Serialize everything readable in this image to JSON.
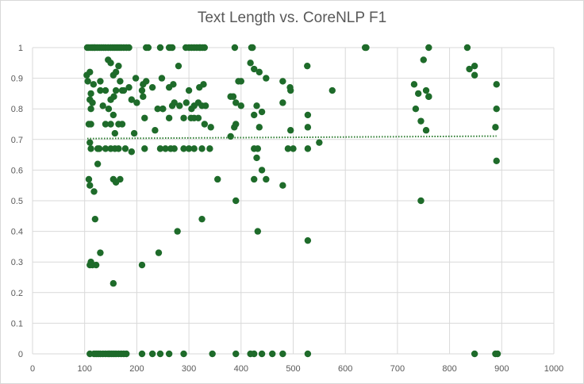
{
  "chart_data": {
    "type": "scatter",
    "title": "Text Length vs. CoreNLP F1",
    "xlabel": "",
    "ylabel": "",
    "xlim": [
      0,
      1000
    ],
    "ylim": [
      0,
      1
    ],
    "x_ticks": [
      "0",
      "100",
      "200",
      "300",
      "400",
      "500",
      "600",
      "700",
      "800",
      "900",
      "1000"
    ],
    "y_ticks": [
      "0",
      "0.1",
      "0.2",
      "0.3",
      "0.4",
      "0.5",
      "0.6",
      "0.7",
      "0.8",
      "0.9",
      "1"
    ],
    "grid": "horizontal and vertical major gridlines",
    "legend": "none",
    "marker_color": "#1e6b2a",
    "trendline": {
      "type": "linear",
      "style": "dotted",
      "color": "#2e7d32",
      "x": [
        105,
        890
      ],
      "y": [
        0.703,
        0.711
      ]
    },
    "series": [
      {
        "x": [
          105,
          108,
          112,
          115,
          118,
          120,
          124,
          128,
          132,
          136,
          140,
          145,
          150,
          154,
          158,
          162,
          166,
          170,
          175,
          180,
          185,
          218,
          222,
          245,
          262,
          265,
          268,
          294,
          300,
          305,
          310,
          315,
          320,
          322,
          326,
          330,
          388,
          420,
          422,
          638,
          760,
          834,
          104,
          106,
          110,
          112,
          117,
          130,
          145,
          150,
          155,
          160,
          165,
          168,
          172,
          185,
          198,
          210,
          212,
          218,
          230,
          248,
          262,
          270,
          280,
          300,
          320,
          328,
          380,
          395,
          400,
          418,
          425,
          435,
          448,
          480,
          494,
          527,
          575,
          640,
          732,
          740,
          750,
          755,
          760,
          838,
          848,
          890,
          110,
          112,
          115,
          130,
          135,
          140,
          146,
          150,
          156,
          160,
          175,
          190,
          200,
          212,
          240,
          250,
          268,
          272,
          282,
          295,
          305,
          310,
          318,
          325,
          332,
          385,
          390,
          400,
          430,
          440,
          480,
          495,
          528,
          735,
          760,
          848,
          890,
          108,
          112,
          140,
          150,
          155,
          158,
          165,
          172,
          195,
          215,
          235,
          250,
          262,
          290,
          304,
          310,
          318,
          330,
          342,
          387,
          390,
          425,
          435,
          495,
          528,
          745,
          755,
          110,
          112,
          125,
          128,
          140,
          150,
          158,
          165,
          178,
          190,
          215,
          245,
          255,
          265,
          272,
          290,
          300,
          310,
          325,
          340,
          380,
          425,
          432,
          490,
          500,
          528,
          550,
          108,
          110,
          118,
          125,
          155,
          160,
          168,
          355,
          390,
          425,
          430,
          440,
          448,
          480,
          745,
          890,
          120,
          130,
          110,
          112,
          115,
          122,
          155,
          210,
          242,
          278,
          325,
          432,
          528,
          888,
          110,
          118,
          122,
          126,
          130,
          135,
          140,
          145,
          148,
          152,
          156,
          160,
          165,
          170,
          175,
          180,
          210,
          230,
          245,
          262,
          290,
          345,
          390,
          418,
          425,
          440,
          460,
          480,
          528,
          848,
          888,
          892
        ],
        "y": [
          1,
          1,
          1,
          1,
          1,
          1,
          1,
          1,
          1,
          1,
          1,
          1,
          1,
          1,
          1,
          1,
          1,
          1,
          1,
          1,
          1,
          1,
          1,
          1,
          1,
          1,
          1,
          1,
          1,
          1,
          1,
          1,
          1,
          1,
          1,
          1,
          1,
          1,
          1,
          1,
          1,
          1,
          0.91,
          0.89,
          0.92,
          0.85,
          0.88,
          0.89,
          0.96,
          0.95,
          0.91,
          0.92,
          0.94,
          0.89,
          0.86,
          0.87,
          0.9,
          0.86,
          0.88,
          0.89,
          0.87,
          0.9,
          0.87,
          0.88,
          0.94,
          0.86,
          0.87,
          0.88,
          0.84,
          0.89,
          0.89,
          0.95,
          0.93,
          0.92,
          0.9,
          0.89,
          0.87,
          0.94,
          0.86,
          1,
          0.88,
          0.85,
          0.96,
          0.86,
          0.84,
          0.93,
          0.94,
          0.88,
          0.83,
          0.8,
          0.82,
          0.86,
          0.81,
          0.86,
          0.8,
          0.83,
          0.84,
          0.86,
          0.86,
          0.83,
          0.82,
          0.84,
          0.8,
          0.8,
          0.81,
          0.82,
          0.81,
          0.82,
          0.8,
          0.81,
          0.82,
          0.81,
          0.81,
          0.84,
          0.82,
          0.81,
          0.81,
          0.79,
          0.82,
          0.86,
          0.78,
          0.8,
          0.84,
          0.91,
          0.8,
          0.75,
          0.75,
          0.75,
          0.75,
          0.78,
          0.72,
          0.75,
          0.75,
          0.72,
          0.77,
          0.73,
          0.8,
          0.77,
          0.77,
          0.77,
          0.77,
          0.77,
          0.75,
          0.74,
          0.74,
          0.75,
          0.78,
          0.74,
          0.73,
          0.74,
          0.76,
          0.73,
          0.69,
          0.67,
          0.67,
          0.67,
          0.67,
          0.67,
          0.67,
          0.67,
          0.67,
          0.66,
          0.67,
          0.67,
          0.67,
          0.67,
          0.67,
          0.67,
          0.67,
          0.67,
          0.67,
          0.67,
          0.71,
          0.67,
          0.67,
          0.67,
          0.67,
          0.67,
          0.69,
          0.57,
          0.55,
          0.53,
          0.62,
          0.57,
          0.56,
          0.57,
          0.57,
          0.5,
          0.57,
          0.64,
          0.6,
          0.57,
          0.55,
          0.5,
          0.63,
          0.44,
          0.33,
          0.29,
          0.3,
          0.29,
          0.29,
          0.23,
          0.29,
          0.33,
          0.4,
          0.44,
          0.4,
          0.37,
          0.74,
          0,
          0,
          0,
          0,
          0,
          0,
          0,
          0,
          0,
          0,
          0,
          0,
          0,
          0,
          0,
          0,
          0,
          0,
          0,
          0,
          0,
          0,
          0,
          0,
          0,
          0,
          0,
          0,
          0,
          0,
          0,
          0
        ]
      }
    ]
  }
}
